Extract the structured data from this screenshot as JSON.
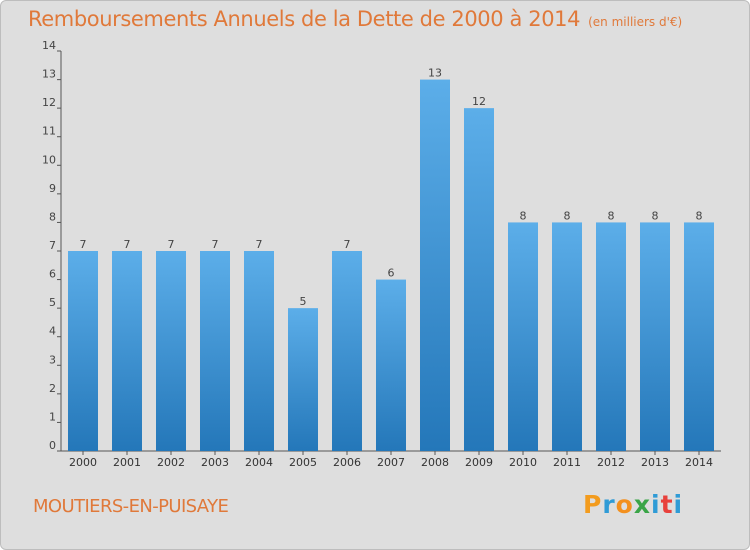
{
  "header": {
    "title": "Remboursements Annuels de la Dette de 2000 à 2014",
    "subtitle": "(en milliers d'€)"
  },
  "chart_data": {
    "type": "bar",
    "title": "Remboursements Annuels de la Dette de 2000 à 2014",
    "subtitle": "(en milliers d'€)",
    "xlabel": "",
    "ylabel": "",
    "categories": [
      "2000",
      "2001",
      "2002",
      "2003",
      "2004",
      "2005",
      "2006",
      "2007",
      "2008",
      "2009",
      "2010",
      "2011",
      "2012",
      "2013",
      "2014"
    ],
    "values": [
      7,
      7,
      7,
      7,
      7,
      5,
      7,
      6,
      13,
      12,
      8,
      8,
      8,
      8,
      8
    ],
    "ylim": [
      0,
      14
    ],
    "yticks": [
      0,
      1,
      2,
      3,
      4,
      5,
      6,
      7,
      8,
      9,
      10,
      11,
      12,
      13,
      14
    ],
    "grid": false,
    "bar_color": "#3c95d8"
  },
  "footer": {
    "city": "MOUTIERS-EN-PUISAYE",
    "logo_letters": [
      "P",
      "r",
      "o",
      "x",
      "i",
      "t",
      "i"
    ],
    "logo_colors": [
      "#f39c1e",
      "#2f9bd6",
      "#f3901e",
      "#3aa547",
      "#2f9bd6",
      "#e8413c",
      "#2f9bd6"
    ]
  }
}
